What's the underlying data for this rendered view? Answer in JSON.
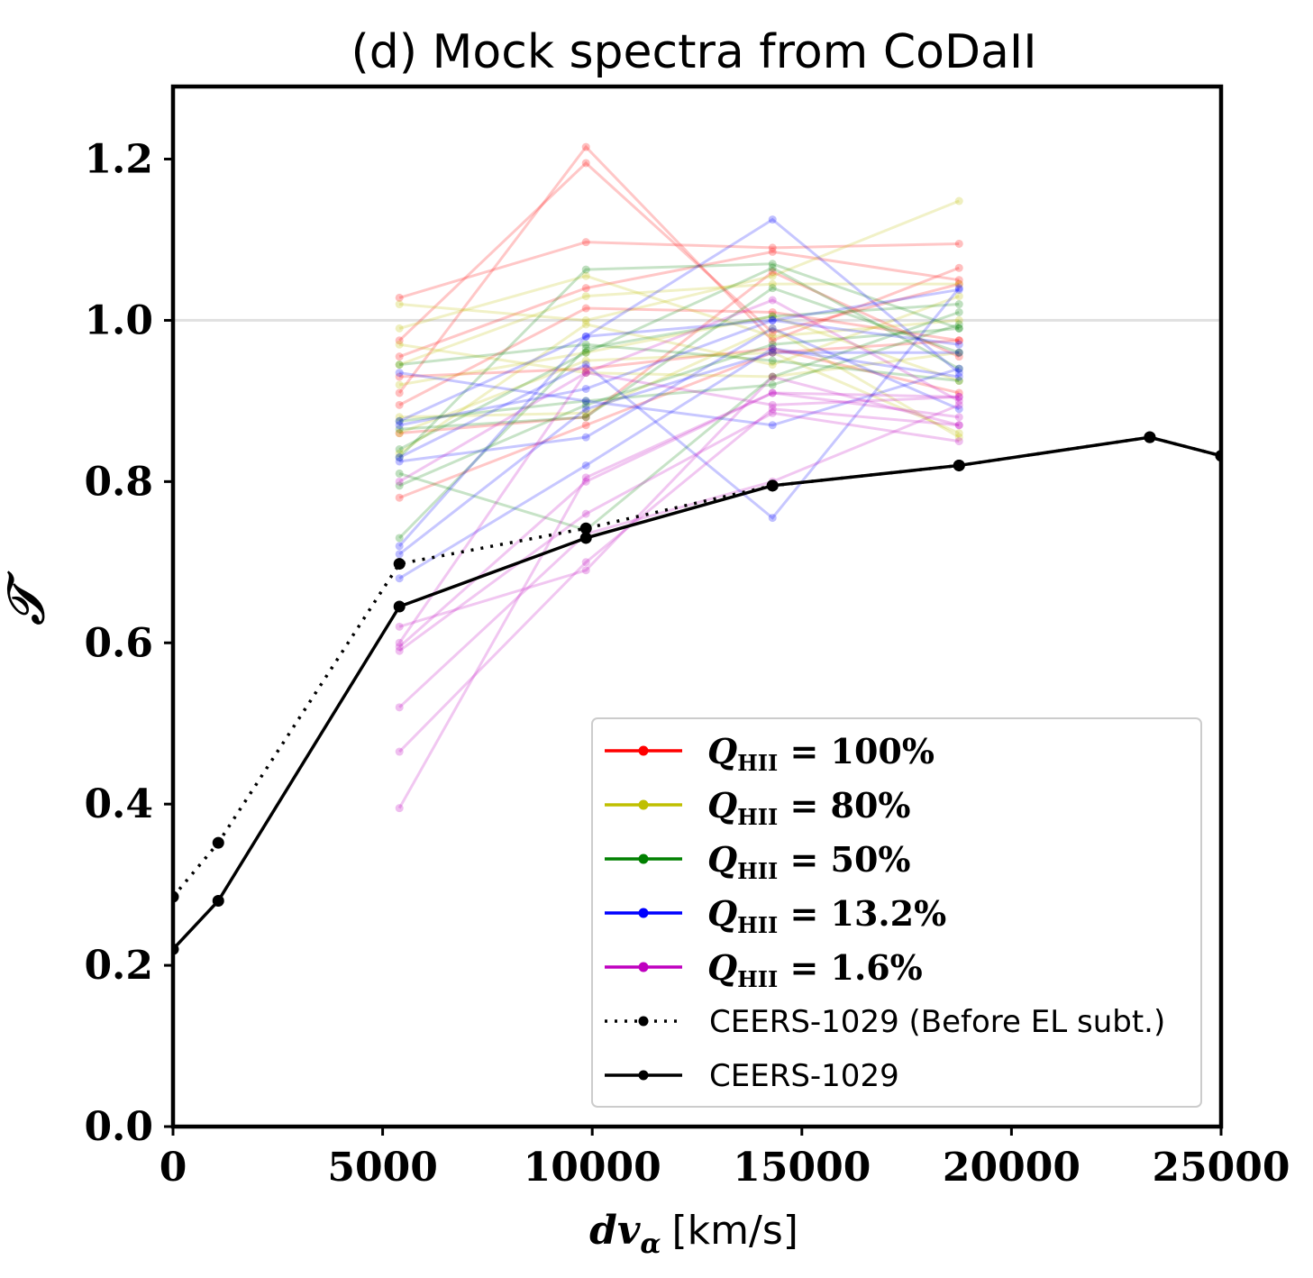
{
  "chart_data": {
    "type": "line",
    "title": "(d) Mock spectra from CoDaII",
    "xlabel_math": "dv",
    "xlabel_sub": "α",
    "xlabel_unit": "[km/s]",
    "ylabel": "𝒯",
    "xlim": [
      0,
      25000
    ],
    "ylim": [
      0,
      1.29
    ],
    "xticks": [
      0,
      5000,
      10000,
      15000,
      20000,
      25000
    ],
    "xtick_labels": [
      "0",
      "5000",
      "10000",
      "15000",
      "20000",
      "25000"
    ],
    "yticks": [
      0,
      0.2,
      0.4,
      0.6,
      0.8,
      1.0,
      1.2
    ],
    "ytick_labels": [
      "0.0",
      "0.2",
      "0.4",
      "0.6",
      "0.8",
      "1.0",
      "1.2"
    ],
    "reference_line": {
      "y": 1.0,
      "color": "#bbbbbb"
    },
    "grid": false,
    "legend_position": "lower-right",
    "mock_x": [
      5400,
      9850,
      14300,
      18750
    ],
    "mock_groups": [
      {
        "label_math": "Q",
        "label_sub": "HII",
        "label_value": " = 100%",
        "color": "#ff0000",
        "lines": [
          [
            0.975,
            1.195,
            0.985,
            1.045
          ],
          [
            0.91,
            1.215,
            0.975,
            1.065
          ],
          [
            1.028,
            1.097,
            1.09,
            1.095
          ],
          [
            0.955,
            1.04,
            1.085,
            1.05
          ],
          [
            0.895,
            1.015,
            1.01,
            0.975
          ],
          [
            0.86,
            0.88,
            1.06,
            0.955
          ],
          [
            0.93,
            0.94,
            0.965,
            0.91
          ],
          [
            0.78,
            0.87,
            0.96,
            0.975
          ]
        ]
      },
      {
        "label_math": "Q",
        "label_sub": "HII",
        "label_value": " = 80%",
        "color": "#bfbf00",
        "lines": [
          [
            1.02,
            1.0,
            1.055,
            1.148
          ],
          [
            0.945,
            1.03,
            1.045,
            1.045
          ],
          [
            0.99,
            1.055,
            0.98,
            1.0
          ],
          [
            0.86,
            0.95,
            0.96,
            0.86
          ],
          [
            0.92,
            0.96,
            1.005,
            0.925
          ],
          [
            0.835,
            0.995,
            0.945,
            1.03
          ],
          [
            0.97,
            0.935,
            0.93,
            0.96
          ],
          [
            0.88,
            0.885,
            0.99,
            0.855
          ]
        ]
      },
      {
        "label_math": "Q",
        "label_sub": "HII",
        "label_value": " = 50%",
        "color": "#008000",
        "lines": [
          [
            0.83,
            1.063,
            1.07,
            0.99
          ],
          [
            0.84,
            0.96,
            1.065,
            0.94
          ],
          [
            0.865,
            0.88,
            1.04,
            0.96
          ],
          [
            0.81,
            0.74,
            0.93,
            1.01
          ],
          [
            0.795,
            0.895,
            0.97,
            0.99
          ],
          [
            0.73,
            0.965,
            1.005,
            1.02
          ],
          [
            0.945,
            0.97,
            0.95,
            0.925
          ],
          [
            0.875,
            0.9,
            0.92,
            0.995
          ]
        ]
      },
      {
        "label_math": "Q",
        "label_sub": "HII",
        "label_value": " = 13.2%",
        "color": "#0000ff",
        "lines": [
          [
            0.875,
            0.98,
            1.125,
            0.935
          ],
          [
            0.83,
            0.945,
            0.755,
            1.04
          ],
          [
            0.71,
            0.89,
            0.96,
            0.96
          ],
          [
            0.825,
            0.855,
            0.99,
            0.89
          ],
          [
            0.935,
            0.9,
            0.87,
            0.94
          ],
          [
            0.72,
            0.98,
            1.0,
            0.97
          ],
          [
            0.68,
            0.82,
            0.965,
            0.93
          ],
          [
            0.87,
            0.915,
            1.0,
            1.038
          ]
        ]
      },
      {
        "label_math": "Q",
        "label_sub": "HII",
        "label_value": " = 1.6%",
        "color": "#bf00bf",
        "lines": [
          [
            0.395,
            0.805,
            0.91,
            0.905
          ],
          [
            0.465,
            0.7,
            0.89,
            0.87
          ],
          [
            0.52,
            0.735,
            0.8,
            0.895
          ],
          [
            0.59,
            0.76,
            0.885,
            0.85
          ],
          [
            0.595,
            0.8,
            0.91,
            0.88
          ],
          [
            0.62,
            0.69,
            0.93,
            0.87
          ],
          [
            0.6,
            0.935,
            1.025,
            0.9
          ],
          [
            0.8,
            0.935,
            0.895,
            0.905
          ]
        ]
      }
    ],
    "observed": [
      {
        "name": "CEERS-1029 (Before EL subt.)",
        "style": "dotted",
        "color": "#000000",
        "x": [
          0,
          1080,
          5400,
          9850,
          14300,
          18750,
          23300,
          25000
        ],
        "y": [
          0.285,
          0.352,
          0.698,
          0.742,
          0.795,
          0.82,
          0.855,
          0.832
        ]
      },
      {
        "name": "CEERS-1029",
        "style": "solid",
        "color": "#000000",
        "x": [
          0,
          1080,
          5400,
          9850,
          14300,
          18750,
          23300,
          25000
        ],
        "y": [
          0.22,
          0.28,
          0.645,
          0.73,
          0.795,
          0.82,
          0.855,
          0.832
        ]
      }
    ]
  }
}
